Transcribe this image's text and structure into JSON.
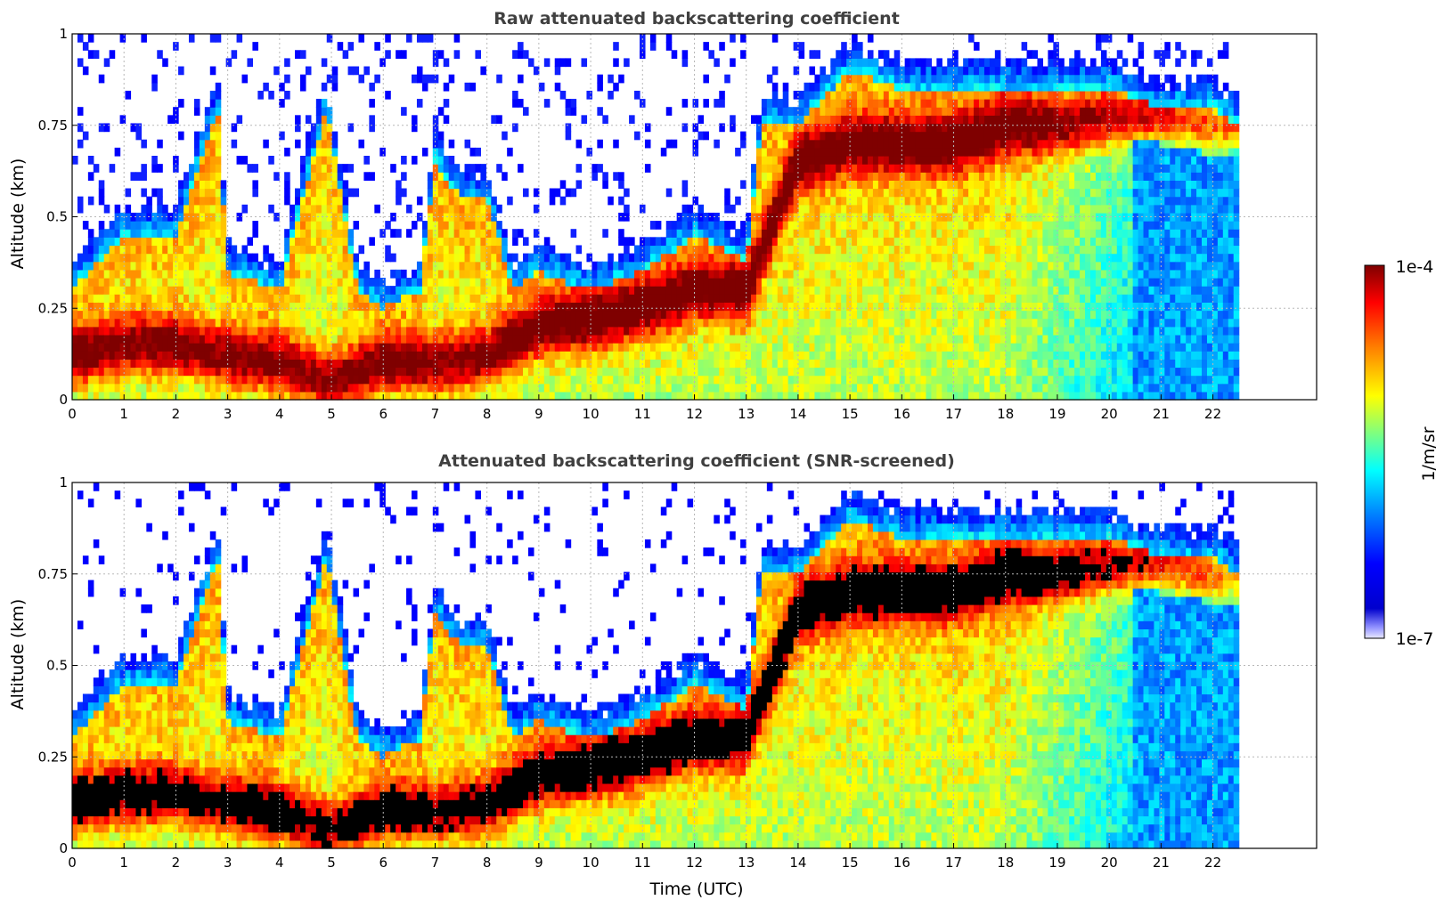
{
  "chart_data": [
    {
      "type": "heatmap",
      "title": "Raw attenuated backscattering coefficient",
      "xlabel": "",
      "ylabel": "Altitude (km)",
      "xlim": [
        0,
        24
      ],
      "ylim": [
        0,
        1
      ],
      "xticks": [
        "0",
        "1",
        "2",
        "3",
        "4",
        "5",
        "6",
        "7",
        "8",
        "9",
        "10",
        "11",
        "12",
        "13",
        "14",
        "15",
        "16",
        "17",
        "18",
        "19",
        "20",
        "21",
        "22"
      ],
      "yticks": [
        "0",
        "0.25",
        "0.5",
        "0.75",
        "1"
      ],
      "data_end_hour": 22.5,
      "grid": true,
      "boundary_layer_top_km": [
        [
          0,
          0.3
        ],
        [
          1,
          0.45
        ],
        [
          2,
          0.45
        ],
        [
          2.8,
          0.8
        ],
        [
          3,
          0.35
        ],
        [
          4,
          0.3
        ],
        [
          4.9,
          0.8
        ],
        [
          5.5,
          0.3
        ],
        [
          6,
          0.25
        ],
        [
          6.7,
          0.3
        ],
        [
          7,
          0.65
        ],
        [
          7.5,
          0.55
        ],
        [
          8,
          0.55
        ],
        [
          8.5,
          0.3
        ],
        [
          9,
          0.35
        ],
        [
          10,
          0.3
        ],
        [
          11,
          0.35
        ],
        [
          12,
          0.45
        ],
        [
          13,
          0.38
        ],
        [
          13.3,
          0.75
        ],
        [
          14,
          0.75
        ],
        [
          15,
          0.9
        ],
        [
          16,
          0.85
        ],
        [
          17,
          0.85
        ],
        [
          18,
          0.85
        ],
        [
          19,
          0.85
        ],
        [
          20,
          0.85
        ],
        [
          21,
          0.8
        ],
        [
          22,
          0.8
        ],
        [
          22.5,
          0.75
        ]
      ],
      "peak_layer_km": [
        [
          0,
          0.12
        ],
        [
          1,
          0.15
        ],
        [
          2,
          0.15
        ],
        [
          3,
          0.12
        ],
        [
          4,
          0.1
        ],
        [
          5,
          0.05
        ],
        [
          6,
          0.1
        ],
        [
          7,
          0.1
        ],
        [
          8,
          0.12
        ],
        [
          9,
          0.2
        ],
        [
          10,
          0.22
        ],
        [
          11,
          0.25
        ],
        [
          12,
          0.3
        ],
        [
          13,
          0.3
        ],
        [
          14,
          0.65
        ],
        [
          15,
          0.7
        ],
        [
          16,
          0.7
        ],
        [
          17,
          0.7
        ],
        [
          18,
          0.75
        ],
        [
          19,
          0.75
        ],
        [
          20,
          0.78
        ],
        [
          21,
          0.78
        ],
        [
          22,
          0.75
        ]
      ]
    },
    {
      "type": "heatmap",
      "title": "Attenuated backscattering coefficient (SNR-screened)",
      "xlabel": "Time (UTC)",
      "ylabel": "Altitude (km)",
      "xlim": [
        0,
        24
      ],
      "ylim": [
        0,
        1
      ],
      "xticks": [
        "0",
        "1",
        "2",
        "3",
        "4",
        "5",
        "6",
        "7",
        "8",
        "9",
        "10",
        "11",
        "12",
        "13",
        "14",
        "15",
        "16",
        "17",
        "18",
        "19",
        "20",
        "21",
        "22"
      ],
      "yticks": [
        "0",
        "0.25",
        "0.5",
        "0.75",
        "1"
      ],
      "data_end_hour": 22.5,
      "grid": true,
      "screened": true
    }
  ],
  "colorbar": {
    "label": "1/m/sr",
    "min_label": "1e-7",
    "max_label": "1e-4",
    "colormap": [
      "#00007f",
      "#0000ff",
      "#007fff",
      "#00ffff",
      "#7fff7f",
      "#ffff00",
      "#ff7f00",
      "#ff0000",
      "#7f0000"
    ],
    "min_color": "#e8e8ff",
    "scale": "log"
  }
}
